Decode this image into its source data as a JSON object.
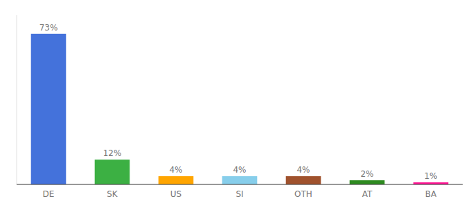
{
  "chart_data": {
    "type": "bar",
    "categories": [
      "DE",
      "SK",
      "US",
      "SI",
      "OTH",
      "AT",
      "BA"
    ],
    "values": [
      73,
      12,
      4,
      4,
      4,
      2,
      1
    ],
    "value_labels": [
      "73%",
      "12%",
      "4%",
      "4%",
      "4%",
      "2%",
      "1%"
    ],
    "colors": [
      "#4472db",
      "#3cb043",
      "#ffa500",
      "#87ceeb",
      "#a0522d",
      "#2e8b20",
      "#ff1493"
    ],
    "ylim": [
      0,
      82
    ],
    "data_labels": true,
    "tick_labels": "x",
    "grid": false
  }
}
